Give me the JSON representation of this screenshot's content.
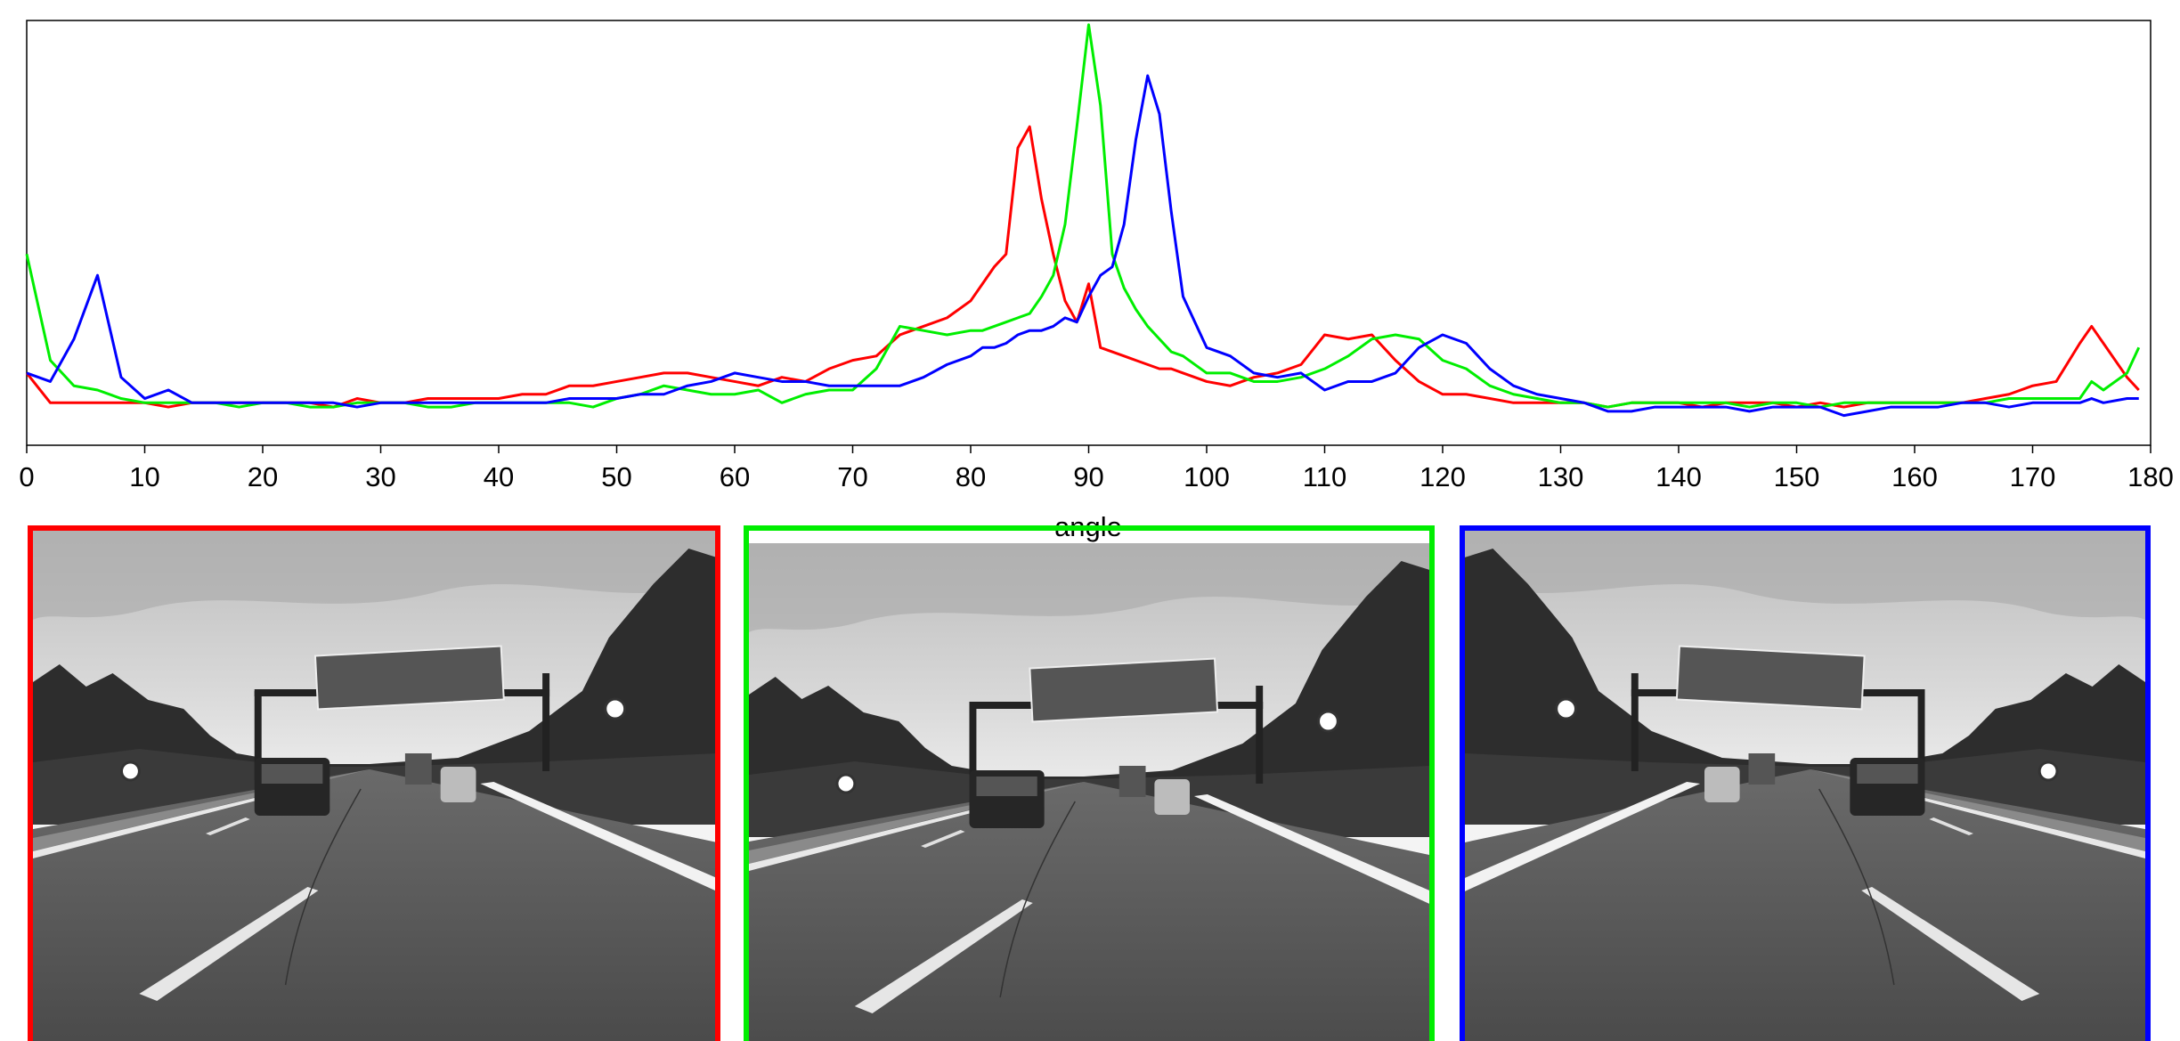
{
  "chart_data": {
    "type": "line",
    "xlabel": "angle",
    "x": [
      0,
      2,
      4,
      6,
      8,
      10,
      12,
      14,
      16,
      18,
      20,
      22,
      24,
      26,
      28,
      30,
      32,
      34,
      36,
      38,
      40,
      42,
      44,
      46,
      48,
      50,
      52,
      54,
      56,
      58,
      60,
      62,
      64,
      66,
      68,
      70,
      72,
      74,
      76,
      78,
      80,
      81,
      82,
      83,
      84,
      85,
      86,
      87,
      88,
      89,
      90,
      91,
      92,
      93,
      94,
      95,
      96,
      97,
      98,
      100,
      102,
      104,
      106,
      108,
      110,
      112,
      114,
      116,
      118,
      120,
      122,
      124,
      126,
      128,
      130,
      132,
      134,
      136,
      138,
      140,
      142,
      144,
      146,
      148,
      150,
      152,
      154,
      156,
      158,
      160,
      162,
      164,
      166,
      168,
      170,
      172,
      174,
      175,
      176,
      178,
      179
    ],
    "series": [
      {
        "color": "#ff0000",
        "values": [
          0.17,
          0.1,
          0.1,
          0.1,
          0.1,
          0.1,
          0.09,
          0.1,
          0.1,
          0.1,
          0.1,
          0.1,
          0.1,
          0.09,
          0.11,
          0.1,
          0.1,
          0.11,
          0.11,
          0.11,
          0.11,
          0.12,
          0.12,
          0.14,
          0.14,
          0.15,
          0.16,
          0.17,
          0.17,
          0.16,
          0.15,
          0.14,
          0.16,
          0.15,
          0.18,
          0.2,
          0.21,
          0.26,
          0.28,
          0.3,
          0.34,
          0.38,
          0.42,
          0.45,
          0.7,
          0.75,
          0.58,
          0.45,
          0.34,
          0.29,
          0.38,
          0.23,
          0.22,
          0.21,
          0.2,
          0.19,
          0.18,
          0.18,
          0.17,
          0.15,
          0.14,
          0.16,
          0.17,
          0.19,
          0.26,
          0.25,
          0.26,
          0.2,
          0.15,
          0.12,
          0.12,
          0.11,
          0.1,
          0.1,
          0.1,
          0.1,
          0.09,
          0.1,
          0.1,
          0.1,
          0.09,
          0.1,
          0.1,
          0.1,
          0.09,
          0.1,
          0.09,
          0.1,
          0.1,
          0.1,
          0.1,
          0.1,
          0.11,
          0.12,
          0.14,
          0.15,
          0.24,
          0.28,
          0.24,
          0.16,
          0.13
        ]
      },
      {
        "color": "#00ee00",
        "values": [
          0.45,
          0.2,
          0.14,
          0.13,
          0.11,
          0.1,
          0.1,
          0.1,
          0.1,
          0.09,
          0.1,
          0.1,
          0.09,
          0.09,
          0.1,
          0.1,
          0.1,
          0.09,
          0.09,
          0.1,
          0.1,
          0.1,
          0.1,
          0.1,
          0.09,
          0.11,
          0.12,
          0.14,
          0.13,
          0.12,
          0.12,
          0.13,
          0.1,
          0.12,
          0.13,
          0.13,
          0.18,
          0.28,
          0.27,
          0.26,
          0.27,
          0.27,
          0.28,
          0.29,
          0.3,
          0.31,
          0.35,
          0.4,
          0.52,
          0.75,
          0.99,
          0.8,
          0.45,
          0.37,
          0.32,
          0.28,
          0.25,
          0.22,
          0.21,
          0.17,
          0.17,
          0.15,
          0.15,
          0.16,
          0.18,
          0.21,
          0.25,
          0.26,
          0.25,
          0.2,
          0.18,
          0.14,
          0.12,
          0.11,
          0.1,
          0.1,
          0.09,
          0.1,
          0.1,
          0.1,
          0.1,
          0.1,
          0.09,
          0.1,
          0.1,
          0.09,
          0.1,
          0.1,
          0.1,
          0.1,
          0.1,
          0.1,
          0.1,
          0.11,
          0.11,
          0.11,
          0.11,
          0.15,
          0.13,
          0.17,
          0.23
        ]
      },
      {
        "color": "#0000ff",
        "values": [
          0.17,
          0.15,
          0.25,
          0.4,
          0.16,
          0.11,
          0.13,
          0.1,
          0.1,
          0.1,
          0.1,
          0.1,
          0.1,
          0.1,
          0.09,
          0.1,
          0.1,
          0.1,
          0.1,
          0.1,
          0.1,
          0.1,
          0.1,
          0.11,
          0.11,
          0.11,
          0.12,
          0.12,
          0.14,
          0.15,
          0.17,
          0.16,
          0.15,
          0.15,
          0.14,
          0.14,
          0.14,
          0.14,
          0.16,
          0.19,
          0.21,
          0.23,
          0.23,
          0.24,
          0.26,
          0.27,
          0.27,
          0.28,
          0.3,
          0.29,
          0.35,
          0.4,
          0.42,
          0.52,
          0.72,
          0.87,
          0.78,
          0.55,
          0.35,
          0.23,
          0.21,
          0.17,
          0.16,
          0.17,
          0.13,
          0.15,
          0.15,
          0.17,
          0.23,
          0.26,
          0.24,
          0.18,
          0.14,
          0.12,
          0.11,
          0.1,
          0.08,
          0.08,
          0.09,
          0.09,
          0.09,
          0.09,
          0.08,
          0.09,
          0.09,
          0.09,
          0.07,
          0.08,
          0.09,
          0.09,
          0.09,
          0.1,
          0.1,
          0.09,
          0.1,
          0.1,
          0.1,
          0.11,
          0.1,
          0.11,
          0.11
        ]
      }
    ],
    "xlim": [
      0,
      180
    ],
    "xticks": [
      0,
      10,
      20,
      30,
      40,
      50,
      60,
      70,
      80,
      90,
      100,
      110,
      120,
      130,
      140,
      150,
      160,
      170,
      180
    ],
    "ylim": [
      0,
      1
    ]
  }
}
